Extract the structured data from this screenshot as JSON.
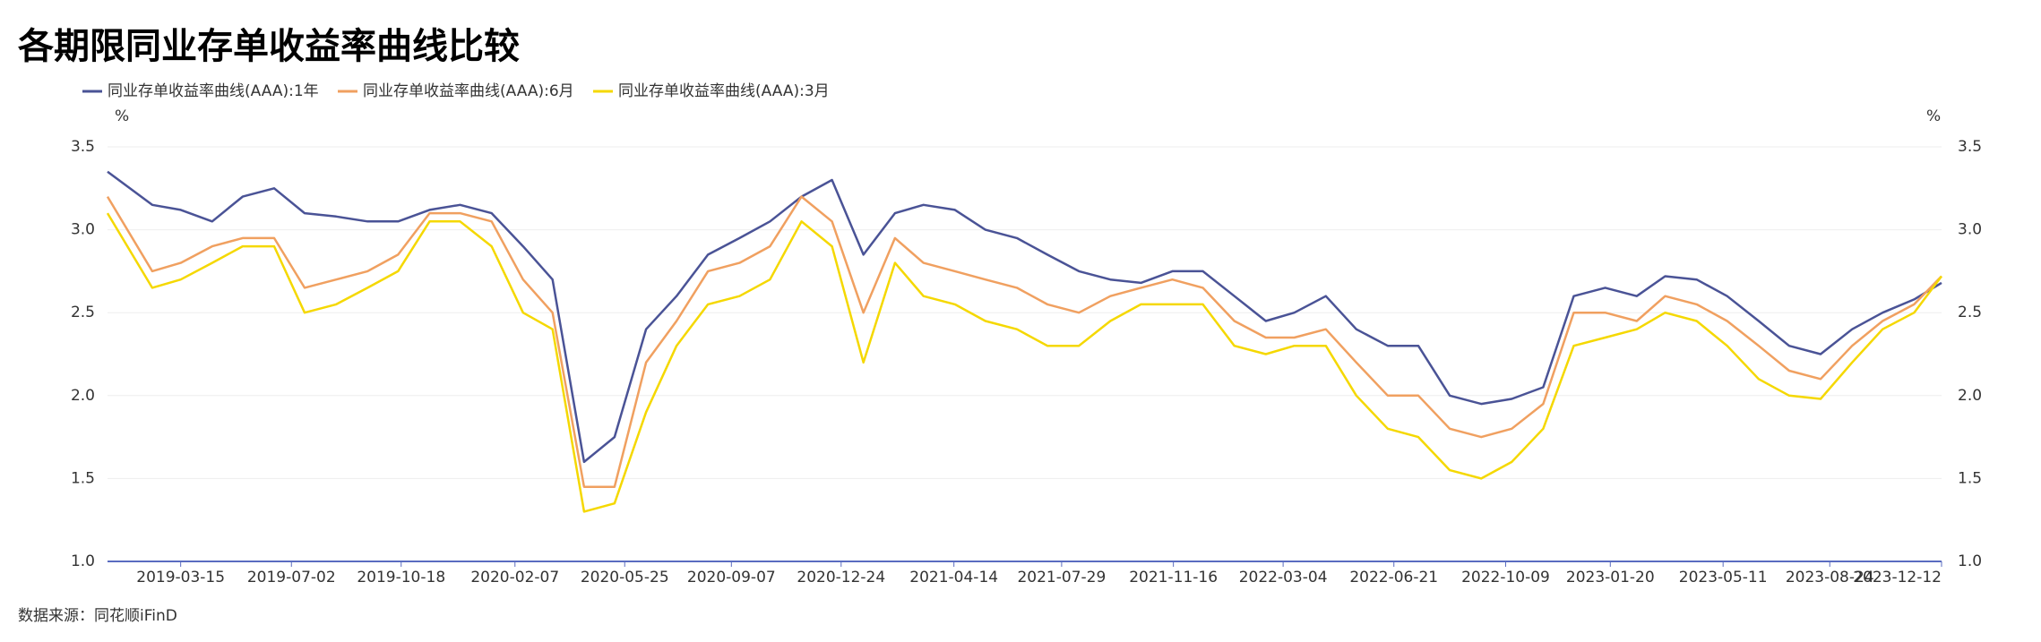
{
  "chart_data": {
    "type": "line",
    "title": "各期限同业存单收益率曲线比较",
    "source": "数据来源：同花顺iFinD",
    "y_unit": "%",
    "y2_unit": "%",
    "x": [
      "2019-01-02",
      "2019-02-15",
      "2019-03-15",
      "2019-04-15",
      "2019-05-15",
      "2019-06-15",
      "2019-07-15",
      "2019-08-15",
      "2019-09-15",
      "2019-10-15",
      "2019-11-15",
      "2019-12-15",
      "2020-01-15",
      "2020-02-15",
      "2020-03-15",
      "2020-04-15",
      "2020-05-15",
      "2020-06-15",
      "2020-07-15",
      "2020-08-15",
      "2020-09-15",
      "2020-10-15",
      "2020-11-15",
      "2020-12-15",
      "2021-01-15",
      "2021-02-15",
      "2021-03-15",
      "2021-04-15",
      "2021-05-15",
      "2021-06-15",
      "2021-07-15",
      "2021-08-15",
      "2021-09-15",
      "2021-10-15",
      "2021-11-15",
      "2021-12-15",
      "2022-01-15",
      "2022-02-15",
      "2022-03-15",
      "2022-04-15",
      "2022-05-15",
      "2022-06-15",
      "2022-07-15",
      "2022-08-15",
      "2022-09-15",
      "2022-10-15",
      "2022-11-15",
      "2022-12-15",
      "2023-01-15",
      "2023-02-15",
      "2023-03-15",
      "2023-04-15",
      "2023-05-15",
      "2023-06-15",
      "2023-07-15",
      "2023-08-15",
      "2023-09-15",
      "2023-10-15",
      "2023-11-15",
      "2023-12-12"
    ],
    "series": [
      {
        "name": "同业存单收益率曲线(AAA):1年",
        "color": "#4a5396",
        "values": [
          3.35,
          3.15,
          3.12,
          3.05,
          3.2,
          3.25,
          3.1,
          3.08,
          3.05,
          3.05,
          3.12,
          3.15,
          3.1,
          2.9,
          2.7,
          1.6,
          1.75,
          2.4,
          2.6,
          2.85,
          2.95,
          3.05,
          3.2,
          3.3,
          2.85,
          3.1,
          3.15,
          3.12,
          3.0,
          2.95,
          2.85,
          2.75,
          2.7,
          2.68,
          2.75,
          2.75,
          2.6,
          2.45,
          2.5,
          2.6,
          2.4,
          2.3,
          2.3,
          2.0,
          1.95,
          1.98,
          2.05,
          2.6,
          2.65,
          2.6,
          2.72,
          2.7,
          2.6,
          2.45,
          2.3,
          2.25,
          2.4,
          2.5,
          2.58,
          2.68
        ]
      },
      {
        "name": "同业存单收益率曲线(AAA):6月",
        "color": "#f0a060",
        "values": [
          3.2,
          2.75,
          2.8,
          2.9,
          2.95,
          2.95,
          2.65,
          2.7,
          2.75,
          2.85,
          3.1,
          3.1,
          3.05,
          2.7,
          2.5,
          1.45,
          1.45,
          2.2,
          2.45,
          2.75,
          2.8,
          2.9,
          3.2,
          3.05,
          2.5,
          2.95,
          2.8,
          2.75,
          2.7,
          2.65,
          2.55,
          2.5,
          2.6,
          2.65,
          2.7,
          2.65,
          2.45,
          2.35,
          2.35,
          2.4,
          2.2,
          2.0,
          2.0,
          1.8,
          1.75,
          1.8,
          1.95,
          2.5,
          2.5,
          2.45,
          2.6,
          2.55,
          2.45,
          2.3,
          2.15,
          2.1,
          2.3,
          2.45,
          2.55,
          2.72
        ]
      },
      {
        "name": "同业存单收益率曲线(AAA):3月",
        "color": "#f5d800",
        "values": [
          3.1,
          2.65,
          2.7,
          2.8,
          2.9,
          2.9,
          2.5,
          2.55,
          2.65,
          2.75,
          3.05,
          3.05,
          2.9,
          2.5,
          2.4,
          1.3,
          1.35,
          1.9,
          2.3,
          2.55,
          2.6,
          2.7,
          3.05,
          2.9,
          2.2,
          2.8,
          2.6,
          2.55,
          2.45,
          2.4,
          2.3,
          2.3,
          2.45,
          2.55,
          2.55,
          2.55,
          2.3,
          2.25,
          2.3,
          2.3,
          2.0,
          1.8,
          1.75,
          1.55,
          1.5,
          1.6,
          1.8,
          2.3,
          2.35,
          2.4,
          2.5,
          2.45,
          2.3,
          2.1,
          2.0,
          1.98,
          2.2,
          2.4,
          2.5,
          2.72
        ]
      }
    ],
    "xlim": [
      "2019-01-02",
      "2023-12-12"
    ],
    "xticks": [
      "2019-03-15",
      "2019-07-02",
      "2019-10-18",
      "2020-02-07",
      "2020-05-25",
      "2020-09-07",
      "2020-12-24",
      "2021-04-14",
      "2021-07-29",
      "2021-11-16",
      "2022-03-04",
      "2022-06-21",
      "2022-10-09",
      "2023-01-20",
      "2023-05-11",
      "2023-08-24",
      "2023-12-12"
    ],
    "ylim": [
      1,
      3.5
    ],
    "yticks": [
      {
        "value": 1,
        "label": "1.0"
      },
      1.5,
      {
        "value": 2,
        "label": "2.0"
      },
      2.5,
      {
        "value": 3,
        "label": "3.0"
      },
      3.5
    ],
    "y2lim": [
      1,
      3.5
    ],
    "y2ticks": [
      {
        "value": 1,
        "label": "1.0"
      },
      1.5,
      {
        "value": 2,
        "label": "2.0"
      },
      2.5,
      {
        "value": 3,
        "label": "3.0"
      },
      3.5
    ],
    "grid": true
  }
}
